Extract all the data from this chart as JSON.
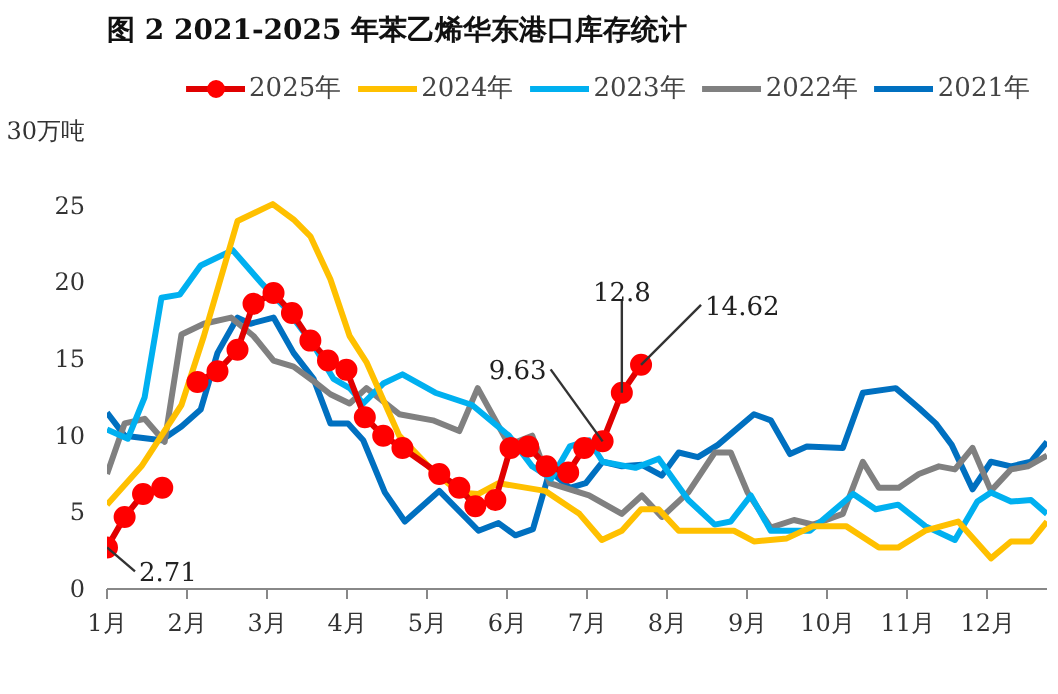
{
  "chart_data": {
    "type": "line",
    "title": "图 2 2021-2025 年苯乙烯华东港口库存统计",
    "xlim": [
      1,
      12.74
    ],
    "xticks": [
      {
        "value": 1,
        "label": "1月"
      },
      {
        "value": 2,
        "label": "2月"
      },
      {
        "value": 3,
        "label": "3月"
      },
      {
        "value": 4,
        "label": "4月"
      },
      {
        "value": 5,
        "label": "5月"
      },
      {
        "value": 6,
        "label": "6月"
      },
      {
        "value": 7,
        "label": "7月"
      },
      {
        "value": 8,
        "label": "8月"
      },
      {
        "value": 9,
        "label": "9月"
      },
      {
        "value": 10,
        "label": "10月"
      },
      {
        "value": 11,
        "label": "11月"
      },
      {
        "value": 12,
        "label": "12月"
      }
    ],
    "ylim": [
      0,
      30
    ],
    "yticks": [
      0,
      5,
      10,
      15,
      20,
      25,
      {
        "value": 30,
        "label": "30万吨"
      }
    ],
    "grid": false,
    "legend": "top",
    "line_style": "solid",
    "series": [
      {
        "name": "2025年",
        "color": "#e00000",
        "marker": "circle",
        "x": [
          1,
          1.22,
          1.45,
          1.69,
          1.9,
          2.13,
          2.38,
          2.63,
          2.83,
          3.08,
          3.31,
          3.54,
          3.76,
          3.99,
          4.22,
          4.45,
          4.69,
          5.15,
          5.4,
          5.6,
          5.85,
          6.04,
          6.26,
          6.49,
          6.76,
          6.96,
          7.19,
          7.43,
          7.67
        ],
        "values": [
          2.71,
          4.7,
          6.2,
          6.6,
          null,
          13.5,
          14.2,
          15.6,
          18.6,
          19.3,
          18.0,
          16.2,
          14.9,
          14.3,
          11.2,
          10.0,
          9.2,
          7.5,
          6.6,
          5.4,
          5.8,
          9.2,
          9.3,
          8.0,
          7.6,
          9.2,
          9.63,
          12.8,
          14.62
        ]
      },
      {
        "name": "2024年",
        "color": "#ffc000",
        "marker": "none",
        "x": [
          1,
          1.43,
          1.93,
          2.21,
          2.63,
          3.07,
          3.33,
          3.54,
          3.79,
          4.03,
          4.24,
          4.65,
          5.07,
          5.4,
          5.64,
          5.89,
          6.47,
          6.9,
          7.18,
          7.43,
          7.67,
          7.89,
          8.14,
          8.83,
          9.08,
          9.49,
          9.82,
          10.23,
          10.64,
          10.88,
          11.22,
          11.63,
          12.04,
          12.29,
          12.54,
          12.74
        ],
        "values": [
          5.5,
          8.0,
          12.0,
          16.5,
          24.0,
          25.1,
          24.1,
          23.0,
          20.2,
          16.5,
          14.8,
          10.0,
          7.7,
          6.3,
          6.2,
          6.9,
          6.4,
          4.9,
          3.2,
          3.8,
          5.2,
          5.2,
          3.8,
          3.8,
          3.1,
          3.3,
          4.1,
          4.1,
          2.7,
          2.7,
          3.8,
          4.4,
          2.0,
          3.1,
          3.1,
          4.4
        ]
      },
      {
        "name": "2023年",
        "color": "#00b0f0",
        "marker": "none",
        "x": [
          1,
          1.26,
          1.47,
          1.68,
          1.91,
          2.17,
          2.57,
          2.92,
          3.25,
          3.58,
          3.83,
          4.03,
          4.2,
          4.45,
          4.69,
          5.1,
          5.56,
          6.02,
          6.31,
          6.55,
          6.78,
          7.02,
          7.19,
          7.6,
          7.89,
          8.26,
          8.59,
          8.79,
          9.04,
          9.29,
          9.78,
          10.32,
          10.6,
          10.88,
          11.22,
          11.59,
          11.87,
          12.04,
          12.29,
          12.54,
          12.74
        ],
        "values": [
          10.4,
          9.8,
          12.5,
          19.0,
          19.2,
          21.1,
          22.1,
          20.0,
          18.2,
          15.9,
          13.7,
          13.1,
          12.1,
          13.4,
          14.0,
          12.8,
          12.0,
          10.0,
          8.0,
          7.2,
          9.3,
          9.7,
          8.3,
          7.9,
          8.5,
          5.8,
          4.2,
          4.4,
          6.1,
          3.8,
          3.8,
          6.2,
          5.2,
          5.5,
          4.1,
          3.2,
          5.7,
          6.3,
          5.7,
          5.8,
          4.9
        ]
      },
      {
        "name": "2022年",
        "color": "#808080",
        "marker": "none",
        "x": [
          1,
          1.22,
          1.47,
          1.72,
          1.93,
          2.21,
          2.55,
          2.83,
          3.08,
          3.33,
          3.62,
          3.79,
          4.03,
          4.24,
          4.65,
          5.07,
          5.4,
          5.63,
          6.02,
          6.31,
          6.53,
          7.02,
          7.43,
          7.68,
          7.93,
          8.26,
          8.59,
          8.79,
          9.0,
          9.29,
          9.58,
          9.82,
          10.19,
          10.44,
          10.64,
          10.89,
          11.14,
          11.39,
          11.59,
          11.81,
          12.04,
          12.29,
          12.5,
          12.74
        ],
        "values": [
          7.5,
          10.8,
          11.1,
          9.6,
          16.6,
          17.3,
          17.7,
          16.5,
          14.9,
          14.5,
          13.4,
          12.7,
          12.1,
          13.1,
          11.4,
          11.0,
          10.3,
          13.1,
          9.4,
          10.0,
          6.9,
          6.1,
          4.9,
          6.1,
          4.7,
          6.3,
          8.9,
          8.9,
          6.3,
          4.0,
          4.5,
          4.2,
          4.9,
          8.3,
          6.6,
          6.6,
          7.5,
          8.0,
          7.8,
          9.2,
          6.4,
          7.8,
          8.0,
          8.7
        ]
      },
      {
        "name": "2021年",
        "color": "#0070c0",
        "marker": "none",
        "x": [
          1,
          1.22,
          1.68,
          1.93,
          2.17,
          2.38,
          2.63,
          2.79,
          3.08,
          3.33,
          3.58,
          3.79,
          4.01,
          4.2,
          4.47,
          4.72,
          5.15,
          5.64,
          5.89,
          6.1,
          6.32,
          6.53,
          6.78,
          6.98,
          7.19,
          7.43,
          7.68,
          7.93,
          8.14,
          8.38,
          8.63,
          9.08,
          9.29,
          9.53,
          9.74,
          10.19,
          10.44,
          10.85,
          11.14,
          11.35,
          11.55,
          11.81,
          12.04,
          12.29,
          12.54,
          12.74
        ],
        "values": [
          11.5,
          10.0,
          9.7,
          10.6,
          11.7,
          15.4,
          17.7,
          17.3,
          17.7,
          15.4,
          13.7,
          10.8,
          10.8,
          9.7,
          6.3,
          4.4,
          6.4,
          3.8,
          4.3,
          3.5,
          3.9,
          7.7,
          6.6,
          6.9,
          8.3,
          8.0,
          8.1,
          7.4,
          8.9,
          8.6,
          9.4,
          11.4,
          11.0,
          8.8,
          9.3,
          9.2,
          12.8,
          13.1,
          11.8,
          10.8,
          9.4,
          6.5,
          8.3,
          8.0,
          8.3,
          9.6
        ]
      }
    ],
    "annotations": [
      {
        "text": "2.71",
        "x": 1,
        "y": 2.71
      },
      {
        "text": "9.63",
        "x": 7.19,
        "y": 9.63
      },
      {
        "text": "12.8",
        "x": 7.43,
        "y": 12.8
      },
      {
        "text": "14.62",
        "x": 7.67,
        "y": 14.62
      }
    ]
  }
}
